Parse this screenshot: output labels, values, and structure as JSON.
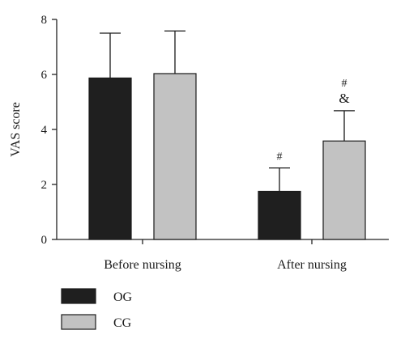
{
  "chart_data": {
    "type": "bar",
    "title": "",
    "xlabel": "",
    "ylabel": "VAS score",
    "ylim": [
      0,
      8
    ],
    "yticks": [
      "0",
      "2",
      "4",
      "6",
      "8"
    ],
    "categories": [
      "Before nursing",
      "After nursing"
    ],
    "series": [
      {
        "name": "OG",
        "color": "#1f1f1f",
        "values": [
          5.87,
          1.75
        ],
        "errors": [
          1.63,
          0.85
        ],
        "annotations": [
          "",
          "#"
        ]
      },
      {
        "name": "CG",
        "color": "#c2c2c2",
        "values": [
          6.03,
          3.58
        ],
        "errors": [
          1.55,
          1.1
        ],
        "annotations": [
          "",
          "#\n&"
        ]
      }
    ],
    "grid": false,
    "legend_position": "bottom-left"
  }
}
